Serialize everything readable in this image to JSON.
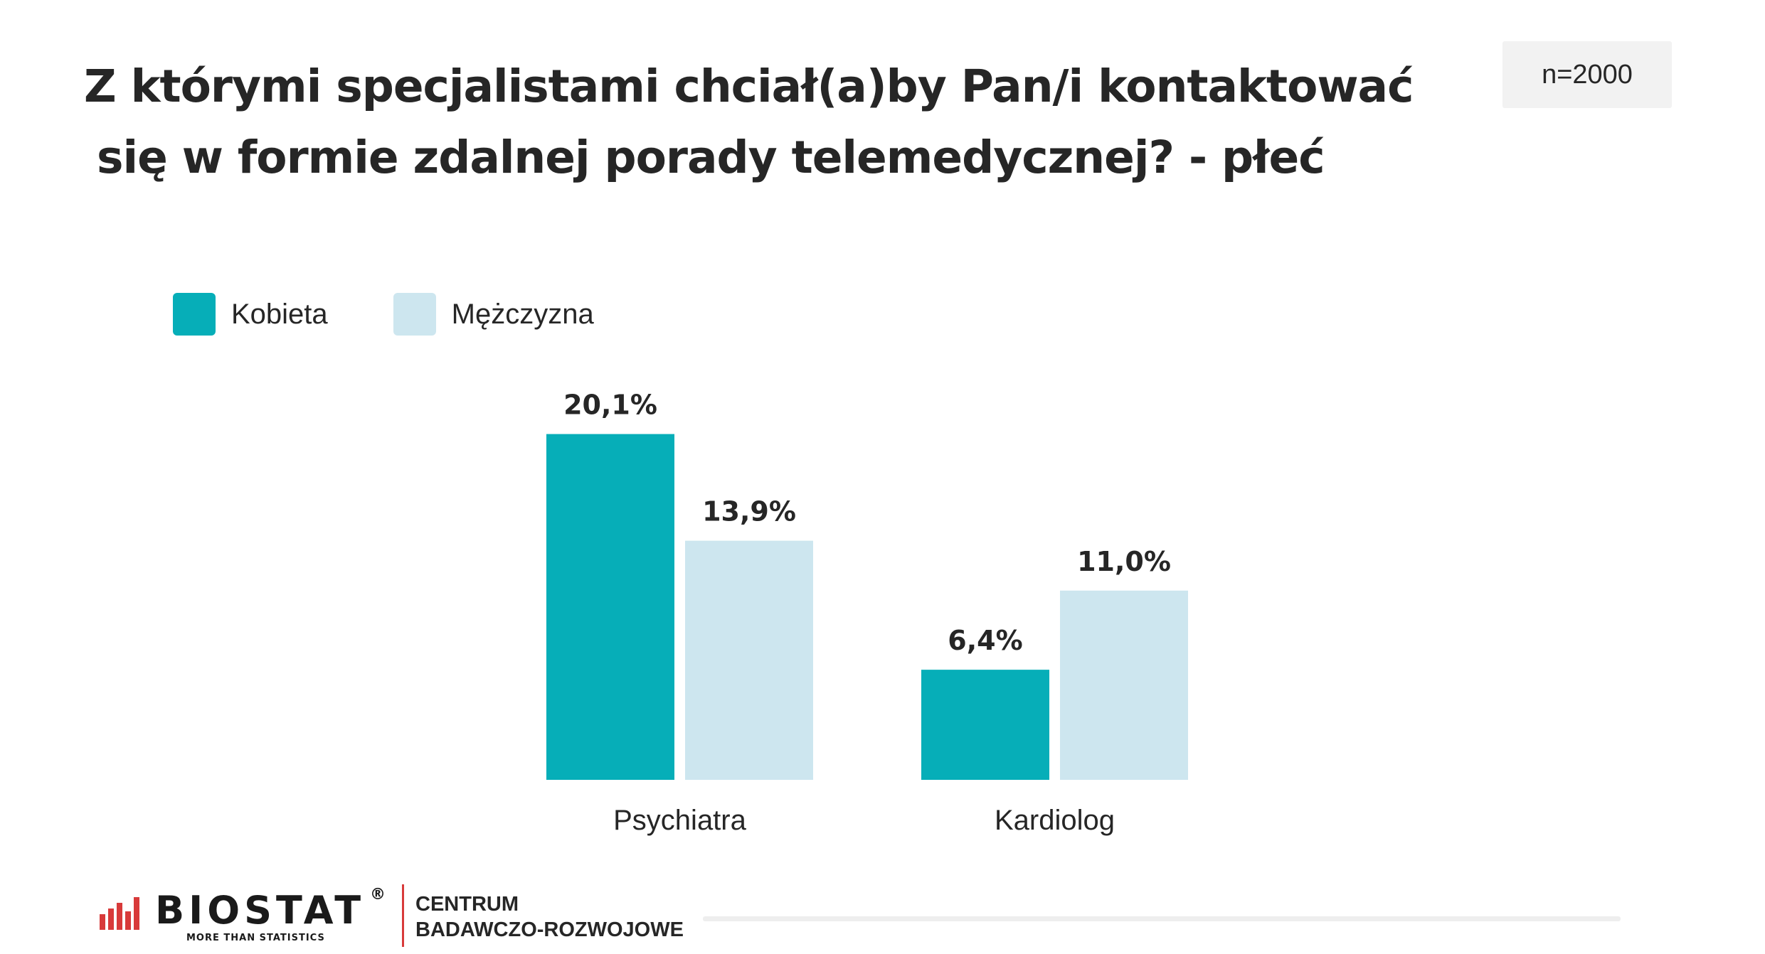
{
  "title": {
    "line1": "Z którymi specjalistami chciał(a)by Pan/i kontaktować",
    "line2": "się w formie zdalnej porady telemedycznej? - płeć"
  },
  "sample_size": "n=2000",
  "colors": {
    "kobieta": "#06aeb8",
    "mezczyzna": "#cde6ef",
    "accent_red": "#d83a3a"
  },
  "chart_data": {
    "type": "bar",
    "categories": [
      "Psychiatra",
      "Kardiolog"
    ],
    "series": [
      {
        "name": "Kobieta",
        "values": [
          20.1,
          6.4
        ],
        "labels": [
          "20,1%",
          "6,4%"
        ],
        "color": "#06aeb8"
      },
      {
        "name": "Mężczyzna",
        "values": [
          13.9,
          11.0
        ],
        "labels": [
          "13,9%",
          "11,0%"
        ],
        "color": "#cde6ef"
      }
    ],
    "title": "Z którymi specjalistami chciał(a)by Pan/i kontaktować się w formie zdalnej porady telemedycznej? - płeć",
    "xlabel": "",
    "ylabel": "",
    "legend_position": "top-left",
    "grid": false
  },
  "footer": {
    "logo_text": "BIOSTAT",
    "logo_registered": "®",
    "logo_tagline": "MORE THAN STATISTICS",
    "center_line1": "CENTRUM",
    "center_line2": "BADAWCZO-ROZWOJOWE"
  }
}
